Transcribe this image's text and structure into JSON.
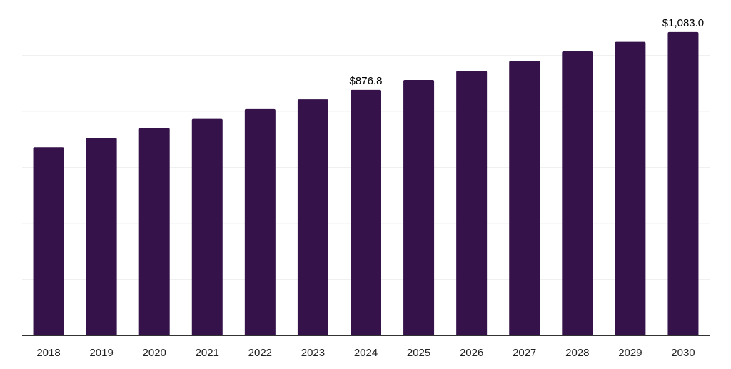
{
  "chart_data": {
    "type": "bar",
    "title": "",
    "xlabel": "",
    "ylabel": "",
    "categories": [
      "2018",
      "2019",
      "2020",
      "2021",
      "2022",
      "2023",
      "2024",
      "2025",
      "2026",
      "2027",
      "2028",
      "2029",
      "2030"
    ],
    "values": [
      672,
      705,
      740,
      773,
      808,
      843,
      876.8,
      912,
      945,
      980,
      1014,
      1048,
      1083.0
    ],
    "data_labels": [
      {
        "index": 6,
        "text": "$876.8"
      },
      {
        "index": 12,
        "text": "$1,083.0"
      }
    ],
    "ylim": [
      0,
      1200
    ],
    "y_gridlines": [
      0,
      200,
      400,
      600,
      800,
      1000,
      1200
    ],
    "grid": true,
    "legend": "none",
    "bar_color": "#35124a",
    "grid_color": "#f0f0f0",
    "axis_color": "#333333",
    "label_color": "#222222"
  }
}
